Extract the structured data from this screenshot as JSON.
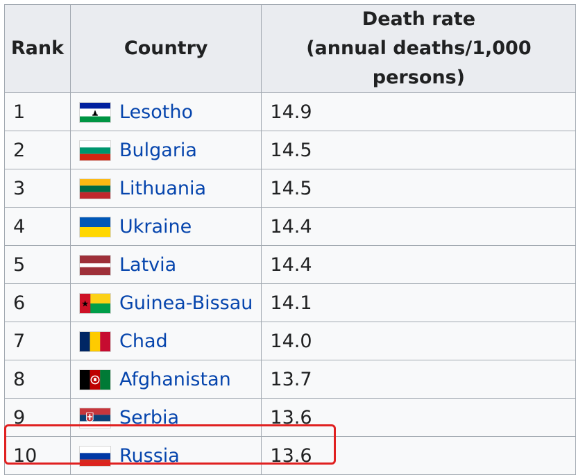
{
  "table": {
    "headers": {
      "rank": "Rank",
      "country": "Country",
      "rate_line1": "Death rate",
      "rate_line2": "(annual deaths/1,000 persons)"
    },
    "rows": [
      {
        "rank": "1",
        "country": "Lesotho",
        "rate": "14.9",
        "flag": "lesotho-flag-icon"
      },
      {
        "rank": "2",
        "country": "Bulgaria",
        "rate": "14.5",
        "flag": "bulgaria-flag-icon"
      },
      {
        "rank": "3",
        "country": "Lithuania",
        "rate": "14.5",
        "flag": "lithuania-flag-icon"
      },
      {
        "rank": "4",
        "country": "Ukraine",
        "rate": "14.4",
        "flag": "ukraine-flag-icon"
      },
      {
        "rank": "5",
        "country": "Latvia",
        "rate": "14.4",
        "flag": "latvia-flag-icon"
      },
      {
        "rank": "6",
        "country": "Guinea-Bissau",
        "rate": "14.1",
        "flag": "guinea-bissau-flag-icon"
      },
      {
        "rank": "7",
        "country": "Chad",
        "rate": "14.0",
        "flag": "chad-flag-icon"
      },
      {
        "rank": "8",
        "country": "Afghanistan",
        "rate": "13.7",
        "flag": "afghanistan-flag-icon"
      },
      {
        "rank": "9",
        "country": "Serbia",
        "rate": "13.6",
        "flag": "serbia-flag-icon"
      },
      {
        "rank": "10",
        "country": "Russia",
        "rate": "13.6",
        "flag": "russia-flag-icon"
      }
    ],
    "highlighted_row": "10"
  },
  "colors": {
    "link": "#0645ad",
    "header_bg": "#eaecf0",
    "border": "#a2a9b1",
    "highlight": "#e02020"
  }
}
